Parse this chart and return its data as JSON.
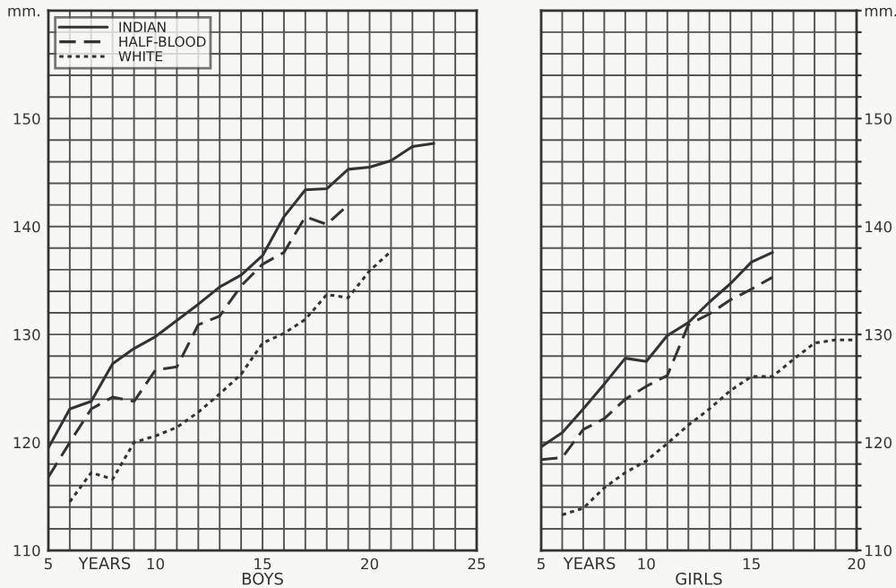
{
  "chart_data": [
    {
      "type": "line",
      "xlabel": "BOYS",
      "annotations": [
        "YEARS"
      ],
      "legend": "top left",
      "grid": true,
      "marker": "none",
      "xlim": [
        5,
        25
      ],
      "ylim": [
        110,
        160
      ],
      "xticks": [
        5,
        {
          "value": 6,
          "label": null
        },
        {
          "value": 7,
          "label": null
        },
        {
          "value": 8,
          "label": null
        },
        {
          "value": 9,
          "label": null
        },
        10,
        {
          "value": 11,
          "label": null
        },
        {
          "value": 12,
          "label": null
        },
        {
          "value": 13,
          "label": null
        },
        {
          "value": 14,
          "label": null
        },
        15,
        {
          "value": 16,
          "label": null
        },
        {
          "value": 17,
          "label": null
        },
        {
          "value": 18,
          "label": null
        },
        {
          "value": 19,
          "label": null
        },
        20,
        {
          "value": 21,
          "label": null
        },
        {
          "value": 22,
          "label": null
        },
        {
          "value": 23,
          "label": null
        },
        {
          "value": 24,
          "label": null
        },
        25
      ],
      "yticks": [
        110,
        {
          "value": 112,
          "label": null
        },
        {
          "value": 114,
          "label": null
        },
        {
          "value": 116,
          "label": null
        },
        {
          "value": 118,
          "label": null
        },
        120,
        {
          "value": 122,
          "label": null
        },
        {
          "value": 124,
          "label": null
        },
        {
          "value": 126,
          "label": null
        },
        {
          "value": 128,
          "label": null
        },
        130,
        {
          "value": 132,
          "label": null
        },
        {
          "value": 134,
          "label": null
        },
        {
          "value": 136,
          "label": null
        },
        {
          "value": 138,
          "label": null
        },
        140,
        {
          "value": 142,
          "label": null
        },
        {
          "value": 144,
          "label": null
        },
        {
          "value": 146,
          "label": null
        },
        {
          "value": 148,
          "label": null
        },
        150,
        {
          "value": 152,
          "label": null
        },
        {
          "value": 154,
          "label": null
        },
        {
          "value": 156,
          "label": null
        },
        {
          "value": 158,
          "label": null
        },
        {
          "value": 160,
          "label": "mm."
        }
      ],
      "series": [
        {
          "name": "INDIAN",
          "color": "#333333",
          "line_style": "solid",
          "x": [
            5,
            6,
            7,
            8,
            9,
            10,
            11,
            12,
            13,
            14,
            15,
            16,
            17,
            18,
            19,
            20,
            21,
            22,
            23
          ],
          "values": [
            119.5,
            123.1,
            123.8,
            127.3,
            128.7,
            129.8,
            131.3,
            132.8,
            134.4,
            135.5,
            137.3,
            140.9,
            143.4,
            143.5,
            145.3,
            145.5,
            146.1,
            147.4,
            147.7
          ]
        },
        {
          "name": "HALF-BLOOD",
          "color": "#333333",
          "line_style": "dashed",
          "x": [
            5,
            6,
            7,
            8,
            9,
            10,
            11,
            12,
            13,
            14,
            15,
            16,
            17,
            18,
            19
          ],
          "values": [
            116.8,
            120.0,
            123.1,
            124.2,
            123.8,
            126.7,
            127.0,
            130.9,
            131.7,
            134.5,
            136.5,
            137.6,
            140.9,
            140.2,
            142.0
          ]
        },
        {
          "name": "WHITE",
          "color": "#333333",
          "line_style": "dotted",
          "x": [
            6,
            7,
            8,
            9,
            10,
            11,
            12,
            13,
            14,
            15,
            16,
            17,
            18,
            19,
            20,
            21
          ],
          "values": [
            114.5,
            117.2,
            116.6,
            120.0,
            120.6,
            121.4,
            122.8,
            124.5,
            126.3,
            129.2,
            130.1,
            131.4,
            133.7,
            133.4,
            135.9,
            137.7
          ]
        }
      ]
    },
    {
      "type": "line",
      "xlabel": "GIRLS",
      "annotations": [
        "YEARS"
      ],
      "legend": false,
      "grid": true,
      "marker": "none",
      "xlim": [
        5,
        20
      ],
      "ylim": [
        110,
        160
      ],
      "xticks": [
        5,
        {
          "value": 6,
          "label": null
        },
        {
          "value": 7,
          "label": null
        },
        {
          "value": 8,
          "label": null
        },
        {
          "value": 9,
          "label": null
        },
        10,
        {
          "value": 11,
          "label": null
        },
        {
          "value": 12,
          "label": null
        },
        {
          "value": 13,
          "label": null
        },
        {
          "value": 14,
          "label": null
        },
        15,
        {
          "value": 16,
          "label": null
        },
        {
          "value": 17,
          "label": null
        },
        {
          "value": 18,
          "label": null
        },
        {
          "value": 19,
          "label": null
        },
        20
      ],
      "yticks": [
        110,
        {
          "value": 112,
          "label": null
        },
        {
          "value": 114,
          "label": null
        },
        {
          "value": 116,
          "label": null
        },
        {
          "value": 118,
          "label": null
        },
        120,
        {
          "value": 122,
          "label": null
        },
        {
          "value": 124,
          "label": null
        },
        {
          "value": 126,
          "label": null
        },
        {
          "value": 128,
          "label": null
        },
        130,
        {
          "value": 132,
          "label": null
        },
        {
          "value": 134,
          "label": null
        },
        {
          "value": 136,
          "label": null
        },
        {
          "value": 138,
          "label": null
        },
        140,
        {
          "value": 142,
          "label": null
        },
        {
          "value": 144,
          "label": null
        },
        {
          "value": 146,
          "label": null
        },
        {
          "value": 148,
          "label": null
        },
        150,
        {
          "value": 152,
          "label": null
        },
        {
          "value": 154,
          "label": null
        },
        {
          "value": 156,
          "label": null
        },
        {
          "value": 158,
          "label": null
        },
        {
          "value": 160,
          "label": "mm."
        }
      ],
      "series": [
        {
          "color": "#333333",
          "line_style": "solid",
          "x": [
            5,
            6,
            7,
            8,
            9,
            10,
            11,
            12,
            13,
            14,
            15,
            16
          ],
          "values": [
            119.6,
            120.9,
            123.1,
            125.4,
            127.8,
            127.5,
            129.9,
            131.1,
            133.0,
            134.7,
            136.7,
            137.6
          ]
        },
        {
          "color": "#333333",
          "line_style": "dashed",
          "x": [
            5,
            6,
            7,
            8,
            9,
            10,
            11,
            12,
            13,
            14,
            15,
            16
          ],
          "values": [
            118.4,
            118.6,
            121.2,
            122.2,
            124.0,
            125.2,
            126.2,
            130.9,
            131.9,
            133.2,
            134.2,
            135.3
          ]
        },
        {
          "color": "#333333",
          "line_style": "dotted",
          "x": [
            6,
            7,
            8,
            9,
            10,
            11,
            12,
            13,
            14,
            15,
            16,
            17,
            18,
            19,
            20
          ],
          "values": [
            113.3,
            113.9,
            115.8,
            117.2,
            118.3,
            119.9,
            121.6,
            123.1,
            124.8,
            126.1,
            126.1,
            127.7,
            129.2,
            129.5,
            129.5
          ]
        }
      ]
    }
  ]
}
